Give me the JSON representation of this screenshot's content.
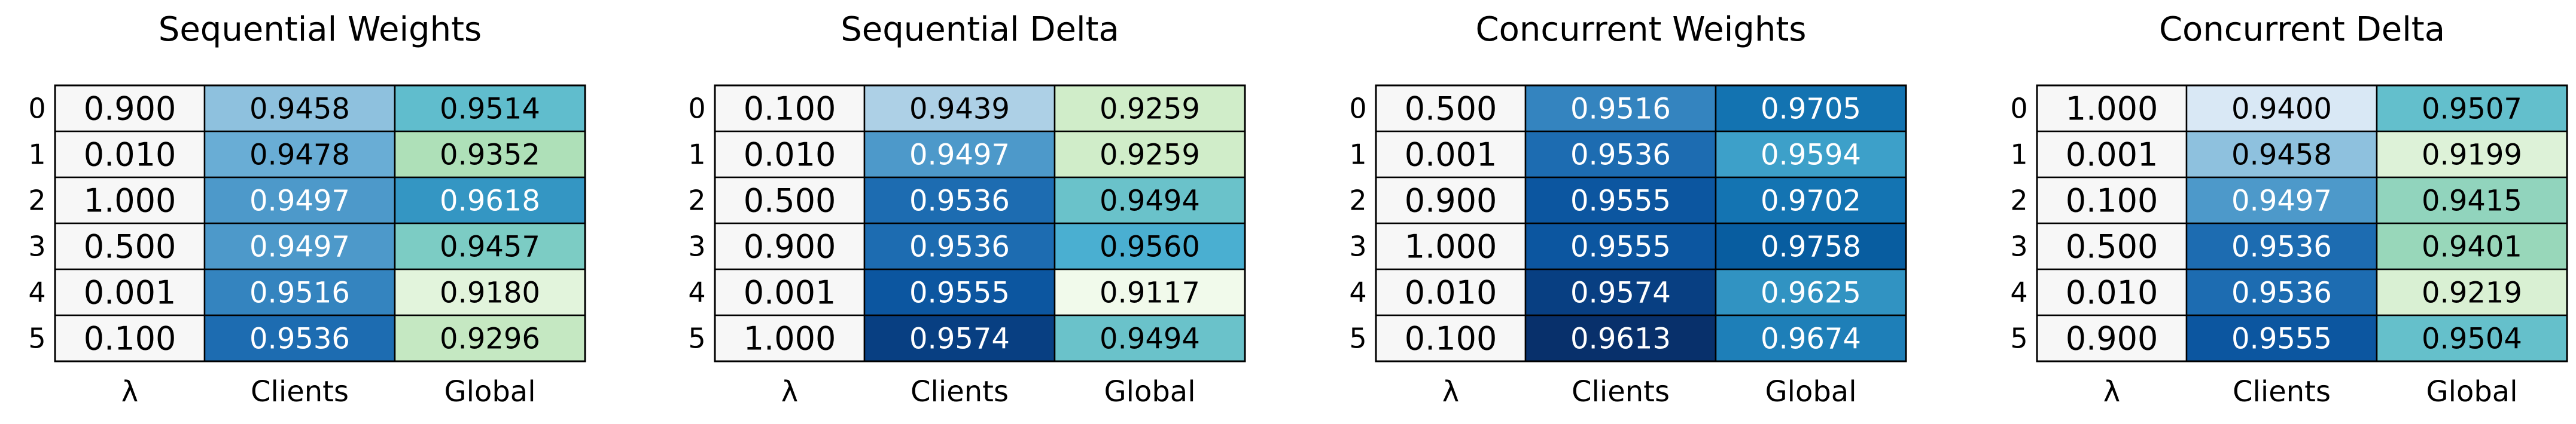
{
  "chart_data": [
    {
      "type": "table",
      "title": "Sequential Weights",
      "columns": [
        "λ",
        "Clients",
        "Global"
      ],
      "row_labels": [
        "0",
        "1",
        "2",
        "3",
        "4",
        "5"
      ],
      "lambda": [
        "0.900",
        "0.010",
        "1.000",
        "0.500",
        "0.001",
        "0.100"
      ],
      "clients": [
        "0.9458",
        "0.9478",
        "0.9497",
        "0.9497",
        "0.9516",
        "0.9536"
      ],
      "global": [
        "0.9514",
        "0.9352",
        "0.9618",
        "0.9457",
        "0.9180",
        "0.9296"
      ],
      "clients_colormap": "Blues",
      "global_colormap": "GnBu"
    },
    {
      "type": "table",
      "title": "Sequential Delta",
      "columns": [
        "λ",
        "Clients",
        "Global"
      ],
      "row_labels": [
        "0",
        "1",
        "2",
        "3",
        "4",
        "5"
      ],
      "lambda": [
        "0.100",
        "0.010",
        "0.500",
        "0.900",
        "0.001",
        "1.000"
      ],
      "clients": [
        "0.9439",
        "0.9497",
        "0.9536",
        "0.9536",
        "0.9555",
        "0.9574"
      ],
      "global": [
        "0.9259",
        "0.9259",
        "0.9494",
        "0.9560",
        "0.9117",
        "0.9494"
      ],
      "clients_colormap": "Blues",
      "global_colormap": "GnBu"
    },
    {
      "type": "table",
      "title": "Concurrent Weights",
      "columns": [
        "λ",
        "Clients",
        "Global"
      ],
      "row_labels": [
        "0",
        "1",
        "2",
        "3",
        "4",
        "5"
      ],
      "lambda": [
        "0.500",
        "0.001",
        "0.900",
        "1.000",
        "0.010",
        "0.100"
      ],
      "clients": [
        "0.9516",
        "0.9536",
        "0.9555",
        "0.9555",
        "0.9574",
        "0.9613"
      ],
      "global": [
        "0.9705",
        "0.9594",
        "0.9702",
        "0.9758",
        "0.9625",
        "0.9674"
      ],
      "clients_colormap": "Blues",
      "global_colormap": "GnBu"
    },
    {
      "type": "table",
      "title": "Concurrent Delta",
      "columns": [
        "λ",
        "Clients",
        "Global"
      ],
      "row_labels": [
        "0",
        "1",
        "2",
        "3",
        "4",
        "5"
      ],
      "lambda": [
        "1.000",
        "0.001",
        "0.100",
        "0.500",
        "0.010",
        "0.900"
      ],
      "clients": [
        "0.9400",
        "0.9458",
        "0.9497",
        "0.9536",
        "0.9536",
        "0.9555"
      ],
      "global": [
        "0.9507",
        "0.9199",
        "0.9415",
        "0.9401",
        "0.9219",
        "0.9504"
      ],
      "clients_colormap": "Blues",
      "global_colormap": "GnBu"
    }
  ],
  "colors": {
    "lambda_cell": "#f7f7f7",
    "grid_line": "#000000",
    "text_dark": "#000000",
    "text_light": "#ffffff"
  }
}
